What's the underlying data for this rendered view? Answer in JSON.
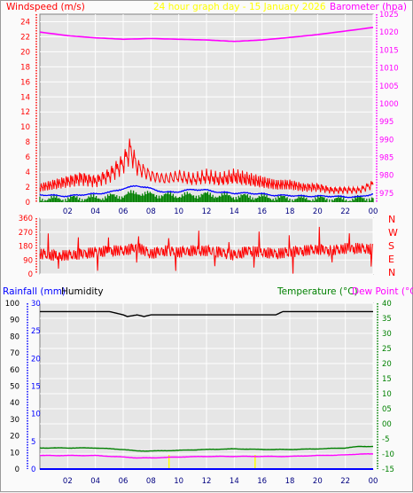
{
  "header": {
    "left_label": "Windspeed (m/s)",
    "center_label": "24 hour graph day - 15 January 2026",
    "right_label": "Barometer (hpa)"
  },
  "colors": {
    "red": "#ff0000",
    "blue": "#0000ff",
    "green": "#008000",
    "magenta": "#ff00ff",
    "black": "#000000",
    "yellow": "#ffff00",
    "plot_bg": "#e6e6e6",
    "grid": "#ffffff"
  },
  "chart_data": [
    {
      "type": "line",
      "panel": "wind-barometer",
      "x_ticks": [
        "02",
        "04",
        "06",
        "08",
        "10",
        "12",
        "14",
        "16",
        "18",
        "20",
        "22",
        "00"
      ],
      "x_range_hours": [
        0,
        24
      ],
      "y_left": {
        "label": "Windspeed (m/s)",
        "range": [
          0,
          25
        ],
        "ticks": [
          "0",
          "2",
          "4",
          "6",
          "8",
          "10",
          "12",
          "14",
          "16",
          "18",
          "20",
          "22",
          "24"
        ]
      },
      "y_right": {
        "label": "Barometer (hpa)",
        "range": [
          972.5,
          1025
        ],
        "ticks": [
          "975",
          "980",
          "985",
          "990",
          "995",
          "1000",
          "1005",
          "1010",
          "1015",
          "1020",
          "1025"
        ]
      },
      "series": [
        {
          "name": "Barometer",
          "axis": "right",
          "color": "#ff00ff",
          "x": [
            0,
            2,
            4,
            6,
            8,
            10,
            12,
            14,
            16,
            18,
            20,
            22,
            24
          ],
          "y": [
            1020.0,
            1019.0,
            1018.4,
            1018.0,
            1018.2,
            1018.0,
            1017.8,
            1017.4,
            1017.8,
            1018.5,
            1019.3,
            1020.3,
            1021.3
          ]
        },
        {
          "name": "Gust",
          "axis": "left",
          "color": "#ff0000",
          "x": [
            0,
            1,
            2,
            3,
            4,
            5,
            6,
            6.5,
            7,
            8,
            9,
            10,
            11,
            12,
            13,
            14,
            15,
            16,
            17,
            18,
            19,
            20,
            21,
            22,
            23,
            24
          ],
          "y": [
            2.5,
            3.0,
            3.5,
            4.0,
            3.5,
            4.5,
            6.5,
            8.8,
            6.0,
            4.5,
            4.0,
            4.5,
            4.0,
            4.5,
            4.0,
            4.5,
            4.0,
            3.5,
            3.0,
            3.0,
            2.5,
            2.5,
            2.0,
            2.0,
            2.0,
            3.0
          ]
        },
        {
          "name": "Average speed",
          "axis": "left",
          "color": "#0000ff",
          "x": [
            0,
            1,
            2,
            3,
            4,
            5,
            6,
            7,
            8,
            9,
            10,
            11,
            12,
            13,
            14,
            15,
            16,
            17,
            18,
            19,
            20,
            21,
            22,
            23,
            24
          ],
          "y": [
            1.0,
            0.9,
            0.8,
            1.0,
            1.1,
            1.3,
            1.8,
            2.2,
            1.8,
            1.3,
            1.4,
            1.7,
            1.6,
            1.3,
            1.2,
            1.2,
            1.1,
            0.9,
            0.9,
            0.8,
            0.8,
            0.8,
            0.7,
            0.7,
            1.1
          ]
        },
        {
          "name": "Wind speed",
          "axis": "left",
          "color": "#008000",
          "x": [
            0,
            2,
            4,
            6,
            7,
            8,
            10,
            12,
            14,
            16,
            18,
            20,
            22,
            24
          ],
          "y": [
            0.5,
            0.5,
            0.6,
            0.9,
            1.3,
            1.0,
            0.9,
            1.0,
            0.8,
            0.7,
            0.5,
            0.5,
            0.4,
            0.6
          ]
        }
      ]
    },
    {
      "type": "line",
      "panel": "wind-direction",
      "x_range_hours": [
        0,
        24
      ],
      "y_left": {
        "range": [
          0,
          360
        ],
        "ticks": [
          "0",
          "90",
          "180",
          "270",
          "360"
        ]
      },
      "y_right_labels": [
        "N",
        "W",
        "S",
        "E",
        "N"
      ],
      "series": [
        {
          "name": "Wind direction",
          "axis": "left",
          "color": "#ff0000",
          "x": [
            0,
            1,
            2,
            3,
            4,
            5,
            6,
            7,
            8,
            9,
            10,
            11,
            12,
            13,
            14,
            15,
            16,
            17,
            18,
            19,
            20,
            21,
            22,
            23,
            24
          ],
          "y": [
            130,
            120,
            120,
            130,
            140,
            150,
            150,
            170,
            130,
            150,
            140,
            150,
            150,
            140,
            120,
            150,
            140,
            130,
            140,
            150,
            160,
            150,
            165,
            165,
            160
          ]
        }
      ]
    },
    {
      "type": "line",
      "panel": "rain-humidity-temperature",
      "x_ticks": [
        "02",
        "04",
        "06",
        "08",
        "10",
        "12",
        "14",
        "16",
        "18",
        "20",
        "22",
        "00"
      ],
      "x_range_hours": [
        0,
        24
      ],
      "header": {
        "rainfall_label": "Rainfall (mm)",
        "humidity_label": "Humidity",
        "temperature_label": "Temperature (°C)",
        "dewpoint_label": "Dew Point (°C)"
      },
      "y_humidity": {
        "range": [
          0,
          100
        ],
        "ticks": [
          "0",
          "10",
          "20",
          "30",
          "40",
          "50",
          "60",
          "70",
          "80",
          "90",
          "100"
        ]
      },
      "y_rain": {
        "range": [
          0,
          30
        ],
        "ticks": [
          "0",
          "5",
          "10",
          "15",
          "20",
          "25",
          "30"
        ]
      },
      "y_temp": {
        "range": [
          -15,
          40
        ],
        "ticks": [
          "-15",
          "-10",
          "-5",
          "00",
          "05",
          "10",
          "15",
          "20",
          "25",
          "30",
          "35",
          "40"
        ]
      },
      "series": [
        {
          "name": "Humidity",
          "axis": "humidity",
          "color": "#000000",
          "x": [
            0,
            4,
            5,
            5.5,
            6,
            6.3,
            7,
            7.5,
            8,
            10,
            12,
            14,
            16,
            17,
            17.5,
            20,
            22,
            24
          ],
          "y": [
            95,
            95,
            95,
            94,
            93,
            92,
            93,
            92,
            93,
            93,
            93,
            93,
            93,
            93,
            95,
            95,
            95,
            95
          ]
        },
        {
          "name": "Temperature",
          "axis": "temp",
          "color": "#008000",
          "x": [
            0,
            2,
            4,
            6,
            7,
            8,
            10,
            12,
            14,
            16,
            18,
            20,
            22,
            23,
            24
          ],
          "y": [
            -8,
            -8,
            -8,
            -8.5,
            -9,
            -9,
            -8.8,
            -8.5,
            -8.3,
            -8.5,
            -8.5,
            -8.3,
            -8,
            -7.5,
            -7.5
          ]
        },
        {
          "name": "Dew Point",
          "axis": "temp",
          "color": "#ff00ff",
          "x": [
            0,
            2,
            4,
            6,
            7,
            8,
            10,
            12,
            14,
            16,
            18,
            20,
            22,
            23,
            24
          ],
          "y": [
            -10.5,
            -10.5,
            -10.5,
            -11,
            -11.3,
            -11.3,
            -11,
            -10.8,
            -10.8,
            -10.8,
            -10.8,
            -10.5,
            -10.3,
            -10,
            -10
          ]
        },
        {
          "name": "Rainfall",
          "axis": "rain",
          "color": "#0000ff",
          "x": [
            0,
            24
          ],
          "y": [
            0,
            0
          ]
        }
      ]
    }
  ]
}
